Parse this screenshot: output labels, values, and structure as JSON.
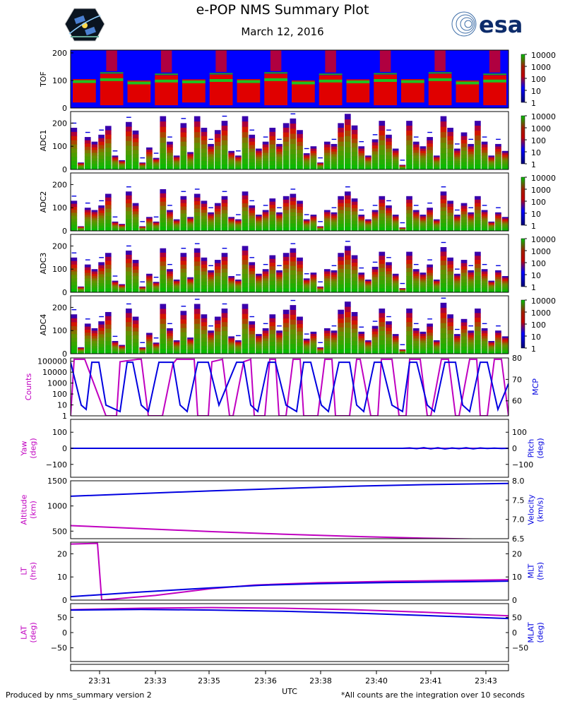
{
  "title": "e-POP NMS Summary Plot",
  "date": "March 12, 2016",
  "logos": {
    "left": "epop-satellite-logo",
    "right": "esa-logo",
    "right_text": "esa"
  },
  "colors": {
    "magenta": "#c000c0",
    "blue": "#0000e0",
    "spec_bg": "#0000ff"
  },
  "footer": {
    "left": "Produced by nms_summary version 2",
    "right": "*All counts are the integration over 10 seconds"
  },
  "chart_data": [
    {
      "type": "heatmap",
      "id": "tof",
      "ylabel": "TOF",
      "ylim": [
        0,
        210
      ],
      "yticks": [
        "0",
        "100",
        "200"
      ],
      "colorbar": [
        "1",
        "10",
        "100",
        "1000",
        "10000"
      ],
      "band_centers": [
        97,
        104,
        92,
        99,
        96,
        101,
        97,
        104,
        92,
        99,
        96,
        101,
        97,
        104,
        92,
        99
      ]
    },
    {
      "type": "heatmap",
      "id": "adc1",
      "ylabel": "ADC1",
      "ylim": [
        0,
        250
      ],
      "yticks": [
        "0",
        "100",
        "200"
      ],
      "colorbar": [
        "1",
        "10",
        "100",
        "1000",
        "10000"
      ],
      "peaks": [
        [
          180,
          30,
          140,
          120
        ],
        [
          150,
          188,
          60,
          40
        ],
        [
          205,
          168,
          30,
          95
        ],
        [
          50,
          230,
          120,
          60
        ],
        [
          200,
          75,
          230,
          180
        ],
        [
          110,
          170,
          210,
          80
        ],
        [
          60,
          230,
          150,
          90
        ],
        [
          120,
          180,
          110,
          200
        ],
        [
          220,
          170,
          70,
          100
        ],
        [
          30,
          120,
          110,
          200
        ],
        [
          240,
          190,
          100,
          60
        ],
        [
          130,
          210,
          150,
          90
        ],
        [
          20,
          210,
          120,
          100
        ],
        [
          140,
          60,
          230,
          180
        ],
        [
          90,
          160,
          110,
          210
        ],
        [
          120,
          60,
          110,
          80
        ]
      ]
    },
    {
      "type": "heatmap",
      "id": "adc2",
      "ylabel": "ADC2",
      "ylim": [
        0,
        250
      ],
      "yticks": [
        "0",
        "100",
        "200"
      ],
      "colorbar": [
        "1",
        "10",
        "100",
        "1000",
        "10000"
      ],
      "peaks": [
        [
          130,
          20,
          100,
          90
        ],
        [
          110,
          160,
          40,
          30
        ],
        [
          170,
          120,
          20,
          60
        ],
        [
          40,
          180,
          90,
          50
        ],
        [
          150,
          60,
          160,
          130
        ],
        [
          80,
          120,
          150,
          60
        ],
        [
          50,
          170,
          110,
          70
        ],
        [
          90,
          140,
          80,
          150
        ],
        [
          160,
          130,
          50,
          70
        ],
        [
          20,
          90,
          80,
          150
        ],
        [
          170,
          140,
          70,
          50
        ],
        [
          90,
          150,
          110,
          70
        ],
        [
          15,
          150,
          90,
          70
        ],
        [
          100,
          50,
          170,
          130
        ],
        [
          70,
          120,
          80,
          150
        ],
        [
          90,
          40,
          80,
          60
        ]
      ]
    },
    {
      "type": "heatmap",
      "id": "adc3",
      "ylabel": "ADC3",
      "ylim": [
        0,
        250
      ],
      "yticks": [
        "0",
        "100",
        "200"
      ],
      "colorbar": [
        "1",
        "10",
        "100",
        "1000",
        "10000"
      ],
      "peaks": [
        [
          150,
          25,
          120,
          100
        ],
        [
          130,
          170,
          50,
          35
        ],
        [
          180,
          140,
          25,
          80
        ],
        [
          45,
          190,
          100,
          55
        ],
        [
          170,
          65,
          190,
          150
        ],
        [
          95,
          140,
          170,
          70
        ],
        [
          55,
          200,
          130,
          80
        ],
        [
          100,
          160,
          95,
          170
        ],
        [
          190,
          150,
          60,
          85
        ],
        [
          25,
          100,
          95,
          170
        ],
        [
          200,
          160,
          85,
          55
        ],
        [
          110,
          175,
          130,
          80
        ],
        [
          18,
          175,
          100,
          85
        ],
        [
          120,
          55,
          195,
          150
        ],
        [
          80,
          140,
          95,
          175
        ],
        [
          100,
          50,
          95,
          70
        ]
      ]
    },
    {
      "type": "heatmap",
      "id": "adc4",
      "ylabel": "ADC4",
      "ylim": [
        0,
        250
      ],
      "yticks": [
        "0",
        "100",
        "200"
      ],
      "colorbar": [
        "1",
        "10",
        "100",
        "1000",
        "10000"
      ],
      "peaks": [
        [
          170,
          28,
          130,
          110
        ],
        [
          140,
          180,
          55,
          38
        ],
        [
          195,
          160,
          28,
          90
        ],
        [
          48,
          215,
          110,
          58
        ],
        [
          185,
          70,
          215,
          170
        ],
        [
          100,
          160,
          195,
          75
        ],
        [
          58,
          215,
          140,
          85
        ],
        [
          110,
          170,
          100,
          190
        ],
        [
          210,
          160,
          65,
          95
        ],
        [
          28,
          110,
          100,
          190
        ],
        [
          225,
          180,
          95,
          58
        ],
        [
          120,
          195,
          140,
          85
        ],
        [
          19,
          195,
          110,
          95
        ],
        [
          130,
          58,
          220,
          170
        ],
        [
          85,
          150,
          100,
          195
        ],
        [
          110,
          55,
          100,
          75
        ]
      ]
    },
    {
      "type": "line",
      "id": "counts_mcp",
      "left": {
        "label": "Counts",
        "scale": "log",
        "ylim": [
          1,
          200000
        ],
        "ticks": [
          "1",
          "10",
          "100",
          "1000",
          "10000",
          "100000"
        ]
      },
      "right": {
        "label": "MCP",
        "ylim": [
          53,
          80
        ],
        "ticks": [
          "60",
          "70",
          "80"
        ]
      },
      "series": [
        {
          "name": "Counts",
          "axis": "left",
          "color": "#c000c0",
          "x": [
            0,
            5,
            20,
            50,
            65,
            70,
            95,
            100,
            110,
            120,
            130,
            145,
            150,
            175,
            180,
            195,
            200,
            215,
            225,
            230,
            245,
            255,
            260,
            275,
            282,
            290,
            295,
            305,
            315,
            325,
            330,
            350,
            360,
            370,
            375,
            395,
            405,
            410,
            425,
            435,
            440,
            455,
            465,
            475,
            480,
            495,
            505,
            510,
            525,
            535,
            545,
            550,
            565,
            575,
            580,
            590,
            600,
            610,
            620
          ],
          "y": [
            1,
            150000,
            150000,
            1,
            1,
            90000,
            150000,
            150000,
            1,
            1,
            1,
            60000,
            150000,
            150000,
            1,
            1,
            90000,
            150000,
            1,
            1,
            90000,
            150000,
            1,
            1,
            150000,
            150000,
            1,
            1,
            150000,
            150000,
            1,
            1,
            150000,
            150000,
            1,
            1,
            150000,
            150000,
            1,
            1,
            150000,
            150000,
            1,
            1,
            150000,
            150000,
            1,
            1,
            150000,
            150000,
            1,
            1,
            150000,
            150000,
            1,
            1,
            150000,
            150000,
            1
          ]
        },
        {
          "name": "MCP",
          "axis": "right",
          "color": "#0000e0",
          "x": [
            0,
            15,
            22,
            30,
            40,
            50,
            70,
            80,
            88,
            100,
            110,
            125,
            145,
            155,
            165,
            180,
            195,
            210,
            235,
            245,
            255,
            265,
            280,
            290,
            305,
            320,
            330,
            340,
            355,
            365,
            380,
            395,
            405,
            415,
            430,
            440,
            455,
            470,
            480,
            490,
            505,
            515,
            530,
            545,
            555,
            565,
            580,
            590,
            605,
            620
          ],
          "y": [
            78,
            58,
            56,
            78,
            78,
            58,
            55,
            78,
            78,
            58,
            55,
            78,
            78,
            58,
            55,
            78,
            78,
            58,
            78,
            78,
            58,
            55,
            78,
            78,
            58,
            55,
            78,
            78,
            58,
            55,
            78,
            78,
            58,
            55,
            78,
            78,
            58,
            55,
            78,
            78,
            58,
            55,
            78,
            78,
            58,
            55,
            78,
            78,
            56,
            68
          ]
        }
      ]
    },
    {
      "type": "line",
      "id": "yaw_pitch",
      "left": {
        "label": "Yaw\n(deg)",
        "ylim": [
          -180,
          180
        ],
        "ticks": [
          "−100",
          "0",
          "100"
        ]
      },
      "right": {
        "label": "Pitch\n(deg)",
        "ylim": [
          -180,
          180
        ],
        "ticks": [
          "−100",
          "0",
          "100"
        ]
      },
      "series": [
        {
          "name": "Yaw",
          "axis": "left",
          "color": "#c000c0",
          "x": [
            0,
            620
          ],
          "y": [
            0,
            0
          ]
        },
        {
          "name": "Pitch",
          "axis": "right",
          "color": "#0000e0",
          "x": [
            0,
            470,
            480,
            490,
            500,
            510,
            520,
            530,
            540,
            550,
            560,
            570,
            580,
            590,
            600,
            610,
            620
          ],
          "y": [
            0,
            0,
            2,
            -2,
            4,
            -3,
            3,
            -4,
            2,
            -2,
            3,
            -3,
            2,
            -1,
            1,
            -1,
            0
          ]
        }
      ]
    },
    {
      "type": "line",
      "id": "alt_vel",
      "left": {
        "label": "Altitude\n(km)",
        "ylim": [
          350,
          1500
        ],
        "ticks": [
          "500",
          "1000",
          "1500"
        ]
      },
      "right": {
        "label": "Velocity\n(km/s)",
        "ylim": [
          6.5,
          8.0
        ],
        "ticks": [
          "6.5",
          "7.0",
          "7.5",
          "8.0"
        ]
      },
      "series": [
        {
          "name": "Altitude",
          "axis": "left",
          "color": "#c000c0",
          "x": [
            0,
            100,
            200,
            300,
            400,
            500,
            620
          ],
          "y": [
            610,
            550,
            490,
            440,
            395,
            360,
            330
          ]
        },
        {
          "name": "Velocity",
          "axis": "right",
          "color": "#0000e0",
          "x": [
            0,
            100,
            200,
            300,
            400,
            500,
            620
          ],
          "y": [
            7.6,
            7.67,
            7.74,
            7.8,
            7.86,
            7.9,
            7.93
          ]
        }
      ]
    },
    {
      "type": "line",
      "id": "lt_mlt",
      "left": {
        "label": "LT\n(hrs)",
        "ylim": [
          0,
          25
        ],
        "ticks": [
          "0",
          "10",
          "20"
        ]
      },
      "right": {
        "label": "MLT\n(hrs)",
        "ylim": [
          0,
          25
        ],
        "ticks": [
          "0",
          "10",
          "20"
        ]
      },
      "series": [
        {
          "name": "LT",
          "axis": "left",
          "color": "#c000c0",
          "x": [
            0,
            38,
            44,
            120,
            200,
            260,
            350,
            450,
            550,
            620
          ],
          "y": [
            24.2,
            24.5,
            0,
            2,
            5,
            6.5,
            7.5,
            8.1,
            8.5,
            8.8
          ]
        },
        {
          "name": "MLT",
          "axis": "right",
          "color": "#0000e0",
          "x": [
            0,
            100,
            200,
            270,
            350,
            450,
            550,
            620
          ],
          "y": [
            1.5,
            3.5,
            5.3,
            6.4,
            7.1,
            7.6,
            7.9,
            8.2
          ]
        }
      ]
    },
    {
      "type": "line",
      "id": "lat_mlat",
      "left": {
        "label": "LAT\n(deg)",
        "ylim": [
          -95,
          95
        ],
        "ticks": [
          "−50",
          "0",
          "50"
        ]
      },
      "right": {
        "label": "MLAT\n(deg)",
        "ylim": [
          -95,
          95
        ],
        "ticks": [
          "−50",
          "0",
          "50"
        ]
      },
      "series": [
        {
          "name": "LAT",
          "axis": "left",
          "color": "#c000c0",
          "x": [
            0,
            100,
            200,
            300,
            400,
            500,
            620
          ],
          "y": [
            75,
            80,
            82,
            80,
            75,
            67,
            55
          ]
        },
        {
          "name": "MLAT",
          "axis": "right",
          "color": "#0000e0",
          "x": [
            0,
            100,
            200,
            300,
            400,
            500,
            620
          ],
          "y": [
            74,
            76,
            74,
            70,
            64,
            56,
            46
          ]
        }
      ]
    }
  ],
  "x_axis": {
    "label": "UTC",
    "ticks": [
      "23:31",
      "23:33",
      "23:35",
      "23:36",
      "23:38",
      "23:40",
      "23:41",
      "23:43"
    ],
    "tick_positions": [
      41,
      120,
      196,
      276,
      354,
      433,
      510,
      588
    ]
  }
}
